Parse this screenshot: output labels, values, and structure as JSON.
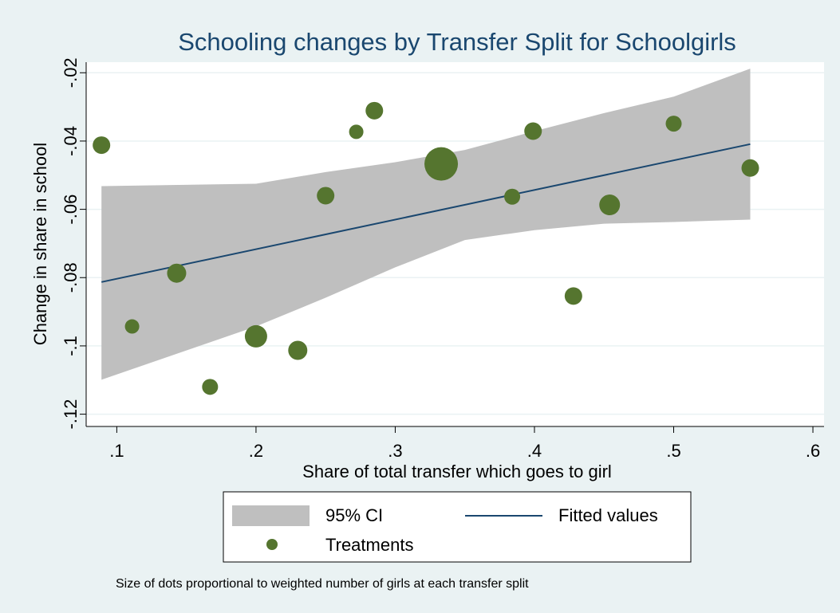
{
  "chart_data": {
    "type": "scatter",
    "title": "Schooling changes by Transfer Split for Schoolgirls",
    "xlabel": "Share of total transfer which goes to girl",
    "ylabel": "Change in share in school",
    "note": "Size of dots proportional to weighted number of girls at each transfer split",
    "xlim": [
      0.078,
      0.608
    ],
    "ylim": [
      -0.1236,
      -0.0169
    ],
    "xticks": [
      {
        "value": 0.1,
        "label": ".1"
      },
      {
        "value": 0.2,
        "label": ".2"
      },
      {
        "value": 0.3,
        "label": ".3"
      },
      {
        "value": 0.4,
        "label": ".4"
      },
      {
        "value": 0.5,
        "label": ".5"
      },
      {
        "value": 0.6,
        "label": ".6"
      }
    ],
    "yticks": [
      {
        "value": -0.12,
        "label": "-.12"
      },
      {
        "value": -0.1,
        "label": "-.1"
      },
      {
        "value": -0.08,
        "label": "-.08"
      },
      {
        "value": -0.06,
        "label": "-.06"
      },
      {
        "value": -0.04,
        "label": "-.04"
      },
      {
        "value": -0.02,
        "label": "-.02"
      }
    ],
    "grid": true,
    "legend": "bottom",
    "series": [
      {
        "name": "95% CI",
        "type": "band",
        "color": "#bfbfbf",
        "x": [
          0.089,
          0.2,
          0.25,
          0.3,
          0.35,
          0.4,
          0.45,
          0.5,
          0.555
        ],
        "lower": [
          -0.1099,
          -0.0943,
          -0.0859,
          -0.077,
          -0.069,
          -0.0661,
          -0.0642,
          -0.0637,
          -0.063
        ],
        "upper": [
          -0.0532,
          -0.0525,
          -0.0491,
          -0.0462,
          -0.0426,
          -0.0371,
          -0.0318,
          -0.027,
          -0.0188
        ]
      },
      {
        "name": "Fitted values",
        "type": "line",
        "color": "#1a476f",
        "x": [
          0.089,
          0.555
        ],
        "values": [
          -0.0813,
          -0.0409
        ]
      },
      {
        "name": "Treatments",
        "type": "points",
        "color": "#55752f",
        "x": [
          0.089,
          0.111,
          0.143,
          0.167,
          0.2,
          0.23,
          0.25,
          0.272,
          0.285,
          0.333,
          0.384,
          0.399,
          0.428,
          0.454,
          0.5,
          0.555
        ],
        "values": [
          -0.0412,
          -0.0943,
          -0.0787,
          -0.112,
          -0.0972,
          -0.1013,
          -0.056,
          -0.0373,
          -0.0311,
          -0.0467,
          -0.0563,
          -0.0371,
          -0.0854,
          -0.0587,
          -0.0349,
          -0.0479
        ],
        "sizes": [
          121,
          81,
          144,
          100,
          196,
          144,
          121,
          81,
          121,
          441,
          100,
          121,
          121,
          169,
          100,
          121
        ]
      }
    ]
  }
}
